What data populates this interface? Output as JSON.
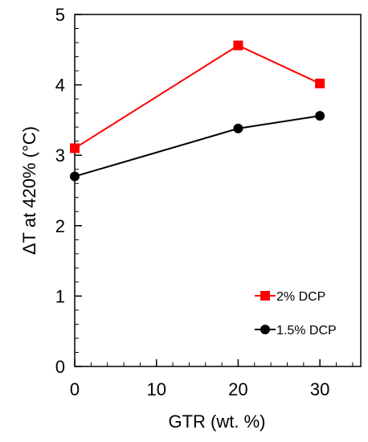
{
  "chart_data": {
    "type": "line",
    "xlabel": "GTR (wt. %)",
    "ylabel": "ΔT at 420% (°C)",
    "xlim": [
      0,
      35
    ],
    "ylim": [
      0,
      5
    ],
    "x_ticks": [
      "0",
      "10",
      "20",
      "30"
    ],
    "y_ticks": [
      "0",
      "1",
      "2",
      "3",
      "4",
      "5"
    ],
    "grid": false,
    "legend_position": "lower-right",
    "series": [
      {
        "name": "2% DCP",
        "color": "#ff0000",
        "marker": "square",
        "x": [
          0,
          20,
          30
        ],
        "y": [
          3.1,
          4.56,
          4.02
        ]
      },
      {
        "name": "1.5% DCP",
        "color": "#000000",
        "marker": "circle",
        "x": [
          0,
          20,
          30
        ],
        "y": [
          2.7,
          3.38,
          3.56
        ]
      }
    ]
  }
}
